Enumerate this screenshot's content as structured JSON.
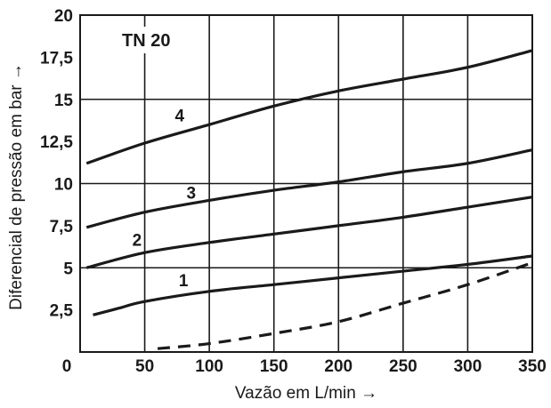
{
  "chart_data": {
    "type": "line",
    "title": "TN 20",
    "xlabel": "Vazão em L/min →",
    "ylabel": "Diferencial de pressão em bar →",
    "xlim": [
      0,
      350
    ],
    "ylim": [
      0,
      20
    ],
    "x_ticks": [
      0,
      50,
      100,
      150,
      200,
      250,
      300,
      350
    ],
    "y_ticks": [
      {
        "value": 2.5,
        "label": "2,5"
      },
      {
        "value": 5,
        "label": "5"
      },
      {
        "value": 7.5,
        "label": "7,5"
      },
      {
        "value": 10,
        "label": "10"
      },
      {
        "value": 12.5,
        "label": "12,5"
      },
      {
        "value": 15,
        "label": "15"
      },
      {
        "value": 17.5,
        "label": "17,5"
      },
      {
        "value": 20,
        "label": "20"
      }
    ],
    "x_origin_label": "0",
    "grid": true,
    "series": [
      {
        "name": "1",
        "label_at": [
          80,
          3.9
        ],
        "x": [
          10,
          30,
          50,
          100,
          150,
          200,
          250,
          300,
          350
        ],
        "y": [
          2.2,
          2.6,
          3.0,
          3.6,
          4.0,
          4.4,
          4.8,
          5.2,
          5.7
        ]
      },
      {
        "name": "2",
        "label_at": [
          44,
          6.3
        ],
        "x": [
          5,
          50,
          100,
          150,
          200,
          250,
          300,
          350
        ],
        "y": [
          5.0,
          5.9,
          6.5,
          7.0,
          7.5,
          8.0,
          8.6,
          9.2
        ]
      },
      {
        "name": "3",
        "label_at": [
          86,
          9.1
        ],
        "x": [
          5,
          50,
          100,
          150,
          200,
          250,
          300,
          350
        ],
        "y": [
          7.4,
          8.3,
          9.0,
          9.6,
          10.1,
          10.7,
          11.2,
          12.0
        ]
      },
      {
        "name": "4",
        "label_at": [
          77,
          13.7
        ],
        "x": [
          5,
          50,
          100,
          150,
          200,
          250,
          300,
          350
        ],
        "y": [
          11.2,
          12.4,
          13.5,
          14.6,
          15.5,
          16.2,
          16.9,
          17.9
        ]
      },
      {
        "name": "",
        "style": "dashed",
        "x": [
          60,
          100,
          150,
          200,
          250,
          300,
          350
        ],
        "y": [
          0.2,
          0.5,
          1.1,
          1.8,
          2.9,
          4.0,
          5.3
        ]
      }
    ]
  }
}
